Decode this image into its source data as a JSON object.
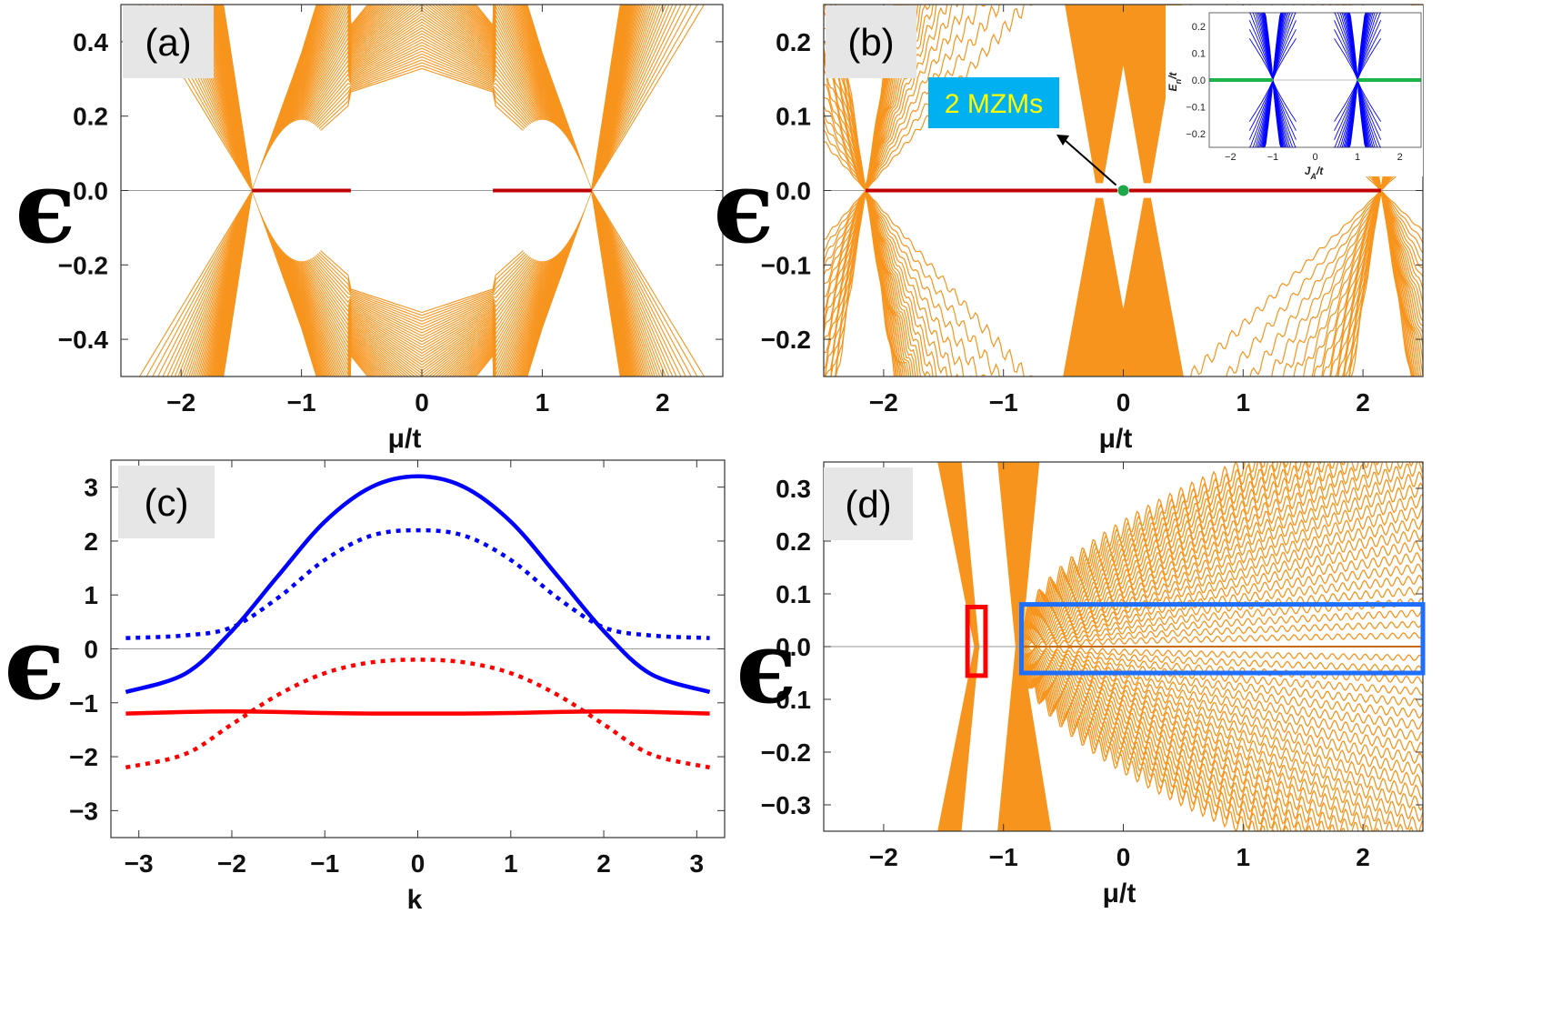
{
  "figure": {
    "epsilon_symbol": "ϵ",
    "colors": {
      "band": "#f7941d",
      "mzm_red": "#c00000",
      "mzm_marker": "#1fa84a",
      "blue": "#0000ff",
      "red": "#ff0000",
      "inset_band": "#0000ff",
      "inset_zero": "#1db54a",
      "label_box": "#e6e6e6",
      "mzm_box": "#00b0f0",
      "box_red": "#ff0000",
      "box_blue": "#1f6fff"
    }
  },
  "chart_data": [
    {
      "panel": "a",
      "tag": "(a)",
      "type": "line",
      "xlabel": "μ/t",
      "ylabel": "ϵ",
      "xlim": [
        -2.5,
        2.5
      ],
      "ylim": [
        -0.5,
        0.5
      ],
      "xticks": [
        -2,
        -1,
        0,
        1,
        2
      ],
      "xticklabels": [
        "−2",
        "−1",
        "0",
        "1",
        "2"
      ],
      "yticks": [
        0.4,
        0.2,
        0.0,
        -0.2,
        -0.4
      ],
      "yticklabels": [
        "0.4",
        "0.2",
        "0.0",
        "−0.2",
        "−0.4"
      ],
      "series": [
        {
          "name": "bulk bands (fan)",
          "description": "dense family of eigenvalue curves"
        },
        {
          "name": "zero modes",
          "segments": [
            [
              -1.41,
              -0.59
            ],
            [
              0.59,
              1.41
            ]
          ],
          "y": 0
        }
      ]
    },
    {
      "panel": "b",
      "tag": "(b)",
      "type": "line",
      "xlabel": "μ/t",
      "ylabel": "ϵ",
      "xlim": [
        -2.5,
        2.5
      ],
      "ylim": [
        -0.25,
        0.25
      ],
      "xticks": [
        -2,
        -1,
        0,
        1,
        2
      ],
      "xticklabels": [
        "−2",
        "−1",
        "0",
        "1",
        "2"
      ],
      "yticks": [
        0.2,
        0.1,
        0.0,
        -0.1,
        -0.2
      ],
      "yticklabels": [
        "0.2",
        "0.1",
        "0.0",
        "−0.1",
        "−0.2"
      ],
      "series": [
        {
          "name": "bulk bands (fan)",
          "description": "dense family of eigenvalue curves"
        },
        {
          "name": "zero modes",
          "segments": [
            [
              -2.15,
              -0.05
            ],
            [
              0.05,
              2.15
            ]
          ],
          "y": 0
        }
      ],
      "annotation": {
        "text": "2 MZMs",
        "point": [
          0,
          0
        ]
      },
      "inset": {
        "type": "line",
        "xlabel": "J_A/t",
        "ylabel": "E_n/t",
        "xlim": [
          -2.5,
          2.5
        ],
        "ylim": [
          -0.25,
          0.25
        ],
        "xticks": [
          -2,
          -1,
          0,
          1,
          2
        ],
        "xticklabels": [
          "−2",
          "−1",
          "0",
          "1",
          "2"
        ],
        "yticks": [
          0.2,
          0.1,
          0.0,
          -0.1,
          -0.2
        ],
        "yticklabels": [
          "0.2",
          "0.1",
          "0.0",
          "−0.1",
          "−0.2"
        ],
        "xlabel_main": "J",
        "xlabel_sub": "A",
        "xlabel_tail": "/t",
        "ylabel_main": "E",
        "ylabel_sub": "n",
        "ylabel_tail": "/t",
        "series": [
          {
            "name": "bulk bands",
            "touch_points": [
              -1,
              1
            ]
          },
          {
            "name": "zero modes",
            "segments": [
              [
                -2.5,
                -1
              ],
              [
                1,
                2.5
              ]
            ],
            "y": 0
          }
        ]
      }
    },
    {
      "panel": "c",
      "tag": "(c)",
      "type": "line",
      "xlabel": "k",
      "ylabel": "ϵ",
      "xlim": [
        -3.3,
        3.3
      ],
      "ylim": [
        -3.5,
        3.5
      ],
      "xticks": [
        -3,
        -2,
        -1,
        0,
        1,
        2,
        3
      ],
      "xticklabels": [
        "−3",
        "−2",
        "−1",
        "0",
        "1",
        "2",
        "3"
      ],
      "yticks": [
        3,
        2,
        1,
        0,
        -1,
        -2,
        -3
      ],
      "yticklabels": [
        "3",
        "2",
        "1",
        "0",
        "−1",
        "−2",
        "−3"
      ],
      "x": [
        -3.14,
        -2.5,
        -2,
        -1.5,
        -1,
        -0.5,
        0,
        0.5,
        1,
        1.5,
        2,
        2.5,
        3.14
      ],
      "series": [
        {
          "name": "blue solid",
          "color": "blue",
          "dash": false,
          "values": [
            -0.8,
            -0.46,
            0.33,
            1.36,
            2.36,
            3.0,
            3.2,
            3.0,
            2.36,
            1.36,
            0.33,
            -0.46,
            -0.8
          ]
        },
        {
          "name": "blue dotted",
          "color": "blue",
          "dash": true,
          "values": [
            0.2,
            0.25,
            0.4,
            0.95,
            1.65,
            2.1,
            2.2,
            2.1,
            1.65,
            0.95,
            0.4,
            0.25,
            0.2
          ]
        },
        {
          "name": "red dotted",
          "color": "red",
          "dash": true,
          "values": [
            -2.2,
            -1.95,
            -1.4,
            -0.85,
            -0.45,
            -0.25,
            -0.2,
            -0.25,
            -0.45,
            -0.85,
            -1.4,
            -1.95,
            -2.2
          ]
        },
        {
          "name": "red solid",
          "color": "red",
          "dash": false,
          "values": [
            -1.2,
            -1.17,
            -1.16,
            -1.17,
            -1.19,
            -1.2,
            -1.2,
            -1.2,
            -1.19,
            -1.17,
            -1.16,
            -1.17,
            -1.2
          ]
        }
      ]
    },
    {
      "panel": "d",
      "tag": "(d)",
      "type": "line",
      "xlabel": "μ/t",
      "ylabel": "ϵ",
      "xlim": [
        -2.5,
        2.5
      ],
      "ylim": [
        -0.35,
        0.35
      ],
      "xticks": [
        -2,
        -1,
        0,
        1,
        2
      ],
      "xticklabels": [
        "−2",
        "−1",
        "0",
        "1",
        "2"
      ],
      "yticks": [
        0.3,
        0.2,
        0.1,
        0.0,
        -0.1,
        -0.2,
        -0.3
      ],
      "yticklabels": [
        "0.3",
        "0.2",
        "0.1",
        "0.0",
        "−0.1",
        "−0.2",
        "−0.3"
      ],
      "series": [
        {
          "name": "bulk bands (fan)",
          "description": "dense oscillating eigenvalue curves"
        }
      ],
      "highlight_boxes": [
        {
          "name": "red box",
          "color": "red",
          "x": [
            -1.3,
            -1.15
          ],
          "y": [
            -0.055,
            0.075
          ]
        },
        {
          "name": "blue box",
          "color": "blue",
          "x": [
            -0.85,
            2.5
          ],
          "y": [
            -0.05,
            0.08
          ]
        }
      ]
    }
  ]
}
